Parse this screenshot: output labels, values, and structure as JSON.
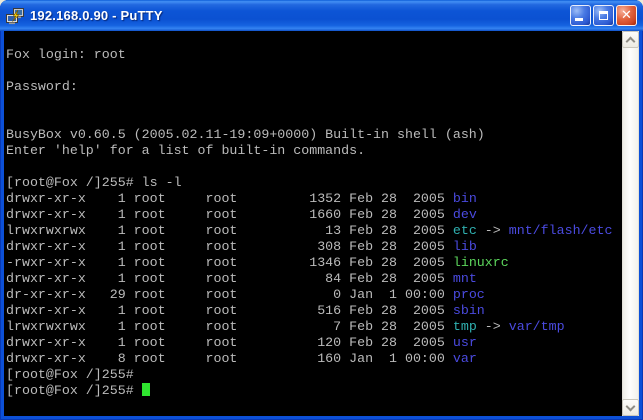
{
  "window": {
    "title": "192.168.0.90 - PuTTY",
    "icon": "putty-terminals-lightning-icon",
    "controls": [
      {
        "name": "minimize-button",
        "icon": "minimize-icon"
      },
      {
        "name": "maximize-button",
        "icon": "maximize-icon"
      },
      {
        "name": "close-button",
        "icon": "close-icon"
      }
    ]
  },
  "palette": {
    "background": "#000000",
    "fg": "#BBBBBB",
    "dir": "#4A4ADF",
    "link": "#2FAFAF",
    "exec": "#5CD65C",
    "cursor": "#2FE52F",
    "titlebar_blue": "#0D55D6",
    "close_red": "#D04724"
  },
  "scrollbar": {
    "orientation": "vertical",
    "up_icon": "chevron-up-icon",
    "down_icon": "chevron-down-icon"
  },
  "terminal": {
    "lines": [
      {
        "segments": [
          {
            "t": "Fox login: root",
            "c": "fg"
          }
        ]
      },
      {
        "segments": []
      },
      {
        "segments": [
          {
            "t": "Password:",
            "c": "fg"
          }
        ]
      },
      {
        "segments": []
      },
      {
        "segments": []
      },
      {
        "segments": [
          {
            "t": "BusyBox v0.60.5 (2005.02.11-19:09+0000) Built-in shell (ash)",
            "c": "fg"
          }
        ]
      },
      {
        "segments": [
          {
            "t": "Enter 'help' for a list of built-in commands.",
            "c": "fg"
          }
        ]
      },
      {
        "segments": []
      },
      {
        "segments": [
          {
            "t": "[root@Fox /]255# ls -l",
            "c": "fg"
          }
        ]
      },
      {
        "segments": [
          {
            "t": "drwxr-xr-x    1 root     root         1352 Feb 28  2005 ",
            "c": "fg"
          },
          {
            "t": "bin",
            "c": "dir"
          }
        ]
      },
      {
        "segments": [
          {
            "t": "drwxr-xr-x    1 root     root         1660 Feb 28  2005 ",
            "c": "fg"
          },
          {
            "t": "dev",
            "c": "dir"
          }
        ]
      },
      {
        "segments": [
          {
            "t": "lrwxrwxrwx    1 root     root           13 Feb 28  2005 ",
            "c": "fg"
          },
          {
            "t": "etc",
            "c": "link"
          },
          {
            "t": " -> ",
            "c": "fg"
          },
          {
            "t": "mnt/flash/etc",
            "c": "dir"
          }
        ]
      },
      {
        "segments": [
          {
            "t": "drwxr-xr-x    1 root     root          308 Feb 28  2005 ",
            "c": "fg"
          },
          {
            "t": "lib",
            "c": "dir"
          }
        ]
      },
      {
        "segments": [
          {
            "t": "-rwxr-xr-x    1 root     root         1346 Feb 28  2005 ",
            "c": "fg"
          },
          {
            "t": "linuxrc",
            "c": "exec"
          }
        ]
      },
      {
        "segments": [
          {
            "t": "drwxr-xr-x    1 root     root           84 Feb 28  2005 ",
            "c": "fg"
          },
          {
            "t": "mnt",
            "c": "dir"
          }
        ]
      },
      {
        "segments": [
          {
            "t": "dr-xr-xr-x   29 root     root            0 Jan  1 00:00 ",
            "c": "fg"
          },
          {
            "t": "proc",
            "c": "dir"
          }
        ]
      },
      {
        "segments": [
          {
            "t": "drwxr-xr-x    1 root     root          516 Feb 28  2005 ",
            "c": "fg"
          },
          {
            "t": "sbin",
            "c": "dir"
          }
        ]
      },
      {
        "segments": [
          {
            "t": "lrwxrwxrwx    1 root     root            7 Feb 28  2005 ",
            "c": "fg"
          },
          {
            "t": "tmp",
            "c": "link"
          },
          {
            "t": " -> ",
            "c": "fg"
          },
          {
            "t": "var/tmp",
            "c": "dir"
          }
        ]
      },
      {
        "segments": [
          {
            "t": "drwxr-xr-x    1 root     root          120 Feb 28  2005 ",
            "c": "fg"
          },
          {
            "t": "usr",
            "c": "dir"
          }
        ]
      },
      {
        "segments": [
          {
            "t": "drwxr-xr-x    8 root     root          160 Jan  1 00:00 ",
            "c": "fg"
          },
          {
            "t": "var",
            "c": "dir"
          }
        ]
      },
      {
        "segments": [
          {
            "t": "[root@Fox /]255#",
            "c": "fg"
          }
        ]
      },
      {
        "segments": [
          {
            "t": "[root@Fox /]255# ",
            "c": "fg"
          }
        ],
        "cursor": true
      }
    ]
  }
}
